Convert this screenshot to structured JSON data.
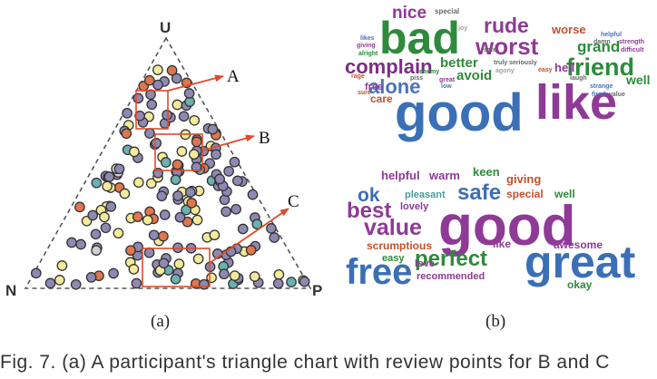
{
  "ternary": {
    "vertex_top": "U",
    "vertex_left": "N",
    "vertex_right": "P",
    "callouts": [
      "A",
      "B",
      "C"
    ],
    "point_palette": [
      "#8e89b3",
      "#f3eb9a",
      "#e0764e",
      "#6ab1b0",
      "#d0d0d0"
    ],
    "panel_label": "(a)"
  },
  "wordclouds": {
    "top": [
      {
        "text": "good",
        "color": "#3b6fb6"
      },
      {
        "text": "like",
        "color": "#8e3a96"
      },
      {
        "text": "bad",
        "color": "#2e8a3c"
      },
      {
        "text": "worst",
        "color": "#8e3a96"
      },
      {
        "text": "rude",
        "color": "#8e3a96"
      },
      {
        "text": "friend",
        "color": "#2e8a3c"
      },
      {
        "text": "complain",
        "color": "#7a2f82"
      },
      {
        "text": "alone",
        "color": "#4d73b8"
      },
      {
        "text": "nice",
        "color": "#8e3a96"
      },
      {
        "text": "better",
        "color": "#2e8a3c"
      },
      {
        "text": "avoid",
        "color": "#2e8a3c"
      },
      {
        "text": "grand",
        "color": "#2e8a3c"
      },
      {
        "text": "worse",
        "color": "#c0522f"
      },
      {
        "text": "free",
        "color": "#8e3a96"
      },
      {
        "text": "care",
        "color": "#c0522f"
      },
      {
        "text": "hell",
        "color": "#8e3a96"
      },
      {
        "text": "well",
        "color": "#2e8a3c"
      },
      {
        "text": "special",
        "color": "#666666"
      },
      {
        "text": "joy",
        "color": "#a0a0a0"
      },
      {
        "text": "likes",
        "color": "#4d73b8"
      },
      {
        "text": "giving",
        "color": "#8e3a96"
      },
      {
        "text": "alright",
        "color": "#2e8a3c"
      },
      {
        "text": "rage",
        "color": "#c0522f"
      },
      {
        "text": "sure",
        "color": "#c0522f"
      },
      {
        "text": "enemy",
        "color": "#2e8a3c"
      },
      {
        "text": "piss",
        "color": "#666666"
      },
      {
        "text": "great",
        "color": "#8e3a96"
      },
      {
        "text": "low",
        "color": "#4d73b8"
      },
      {
        "text": "safe",
        "color": "#666666"
      },
      {
        "text": "truly",
        "color": "#666666"
      },
      {
        "text": "seriously",
        "color": "#666666"
      },
      {
        "text": "agony",
        "color": "#a0a0a0"
      },
      {
        "text": "easy",
        "color": "#c0522f"
      },
      {
        "text": "helpful",
        "color": "#4d73b8"
      },
      {
        "text": "damn",
        "color": "#666666"
      },
      {
        "text": "strength",
        "color": "#8e3a96"
      },
      {
        "text": "difficult",
        "color": "#8e3a96"
      },
      {
        "text": "laugh",
        "color": "#666666"
      },
      {
        "text": "strange",
        "color": "#4d73b8"
      },
      {
        "text": "fired",
        "color": "#4d73b8"
      },
      {
        "text": "value",
        "color": "#666666"
      }
    ],
    "bottom": [
      {
        "text": "good",
        "color": "#8e3a96"
      },
      {
        "text": "great",
        "color": "#3b6fb6"
      },
      {
        "text": "free",
        "color": "#3b6fb6"
      },
      {
        "text": "perfect",
        "color": "#2e8a3c"
      },
      {
        "text": "value",
        "color": "#8e3a96"
      },
      {
        "text": "best",
        "color": "#8e3a96"
      },
      {
        "text": "safe",
        "color": "#3b6fb6"
      },
      {
        "text": "ok",
        "color": "#3b6fb6"
      },
      {
        "text": "pleasant",
        "color": "#4d9a9a"
      },
      {
        "text": "lovely",
        "color": "#8e3a96"
      },
      {
        "text": "helpful",
        "color": "#8e3a96"
      },
      {
        "text": "warm",
        "color": "#8e3a96"
      },
      {
        "text": "keen",
        "color": "#2e8a3c"
      },
      {
        "text": "giving",
        "color": "#c0522f"
      },
      {
        "text": "special",
        "color": "#c0522f"
      },
      {
        "text": "well",
        "color": "#2e8a3c"
      },
      {
        "text": "scrumptious",
        "color": "#c0522f"
      },
      {
        "text": "like",
        "color": "#8e3a96"
      },
      {
        "text": "awesome",
        "color": "#8e3a96"
      },
      {
        "text": "easy",
        "color": "#2e8a3c"
      },
      {
        "text": "love",
        "color": "#8e3a96"
      },
      {
        "text": "recommended",
        "color": "#8e3a96"
      },
      {
        "text": "okay",
        "color": "#2e8a3c"
      }
    ],
    "panel_label": "(b)"
  },
  "caption": "Fig. 7.  (a) A participant's triangle chart with review points for B and C"
}
